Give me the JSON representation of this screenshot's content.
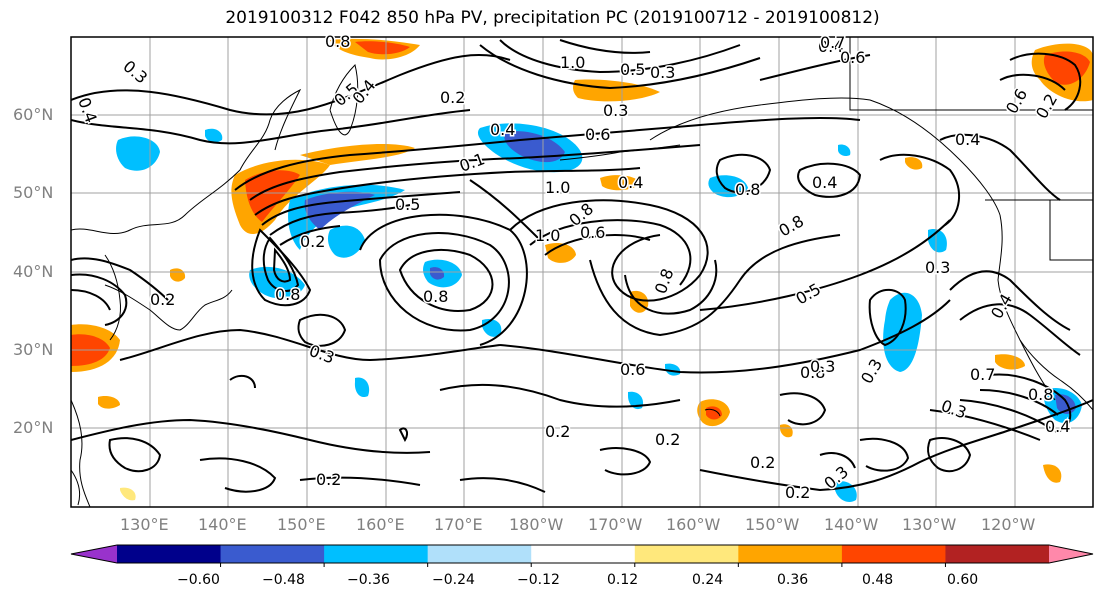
{
  "title": "2019100312 F042 850 hPa PV, precipitation PC (2019100712 - 2019100812)",
  "map": {
    "region": "North Pacific",
    "lon_range": [
      120,
      250
    ],
    "lat_range": [
      10,
      70
    ],
    "lat_labels": [
      "60°N",
      "50°N",
      "40°N",
      "30°N",
      "20°N"
    ],
    "lon_labels": [
      "130°E",
      "140°E",
      "150°E",
      "160°E",
      "170°E",
      "180°W",
      "170°W",
      "160°W",
      "150°W",
      "140°W",
      "130°W",
      "120°W"
    ],
    "contour_labels": [
      "0.3",
      "0.4",
      "0.2",
      "0.5",
      "0.4",
      "0.8",
      "0.4",
      "1.0",
      "0.3",
      "0.7",
      "0.6",
      "0.4",
      "0.6",
      "0.5",
      "0.3",
      "0.4",
      "0.6",
      "0.1",
      "1.0",
      "0.2",
      "0.6",
      "0.8",
      "0.4",
      "0.8",
      "0.4",
      "0.5",
      "1.0",
      "0.8",
      "0.8",
      "0.2",
      "0.8",
      "0.5",
      "0.3",
      "0.8",
      "0.8",
      "0.4",
      "0.6",
      "0.3",
      "0.3",
      "0.3",
      "0.3",
      "0.7",
      "0.8",
      "0.4",
      "0.2",
      "0.2",
      "0.2",
      "0.2",
      "0.2",
      "0.3",
      "0.2"
    ]
  },
  "colorbar": {
    "ticks": [
      "−0.60",
      "−0.48",
      "−0.36",
      "−0.24",
      "−0.12",
      "0.12",
      "0.24",
      "0.36",
      "0.48",
      "0.60"
    ],
    "colors": [
      "#9932cc",
      "#00008b",
      "#3a5bcf",
      "#00bfff",
      "#b0e0fa",
      "#ffffff",
      "#ffe87c",
      "#ffa500",
      "#ff4500",
      "#b22222",
      "#ff88aa"
    ]
  }
}
